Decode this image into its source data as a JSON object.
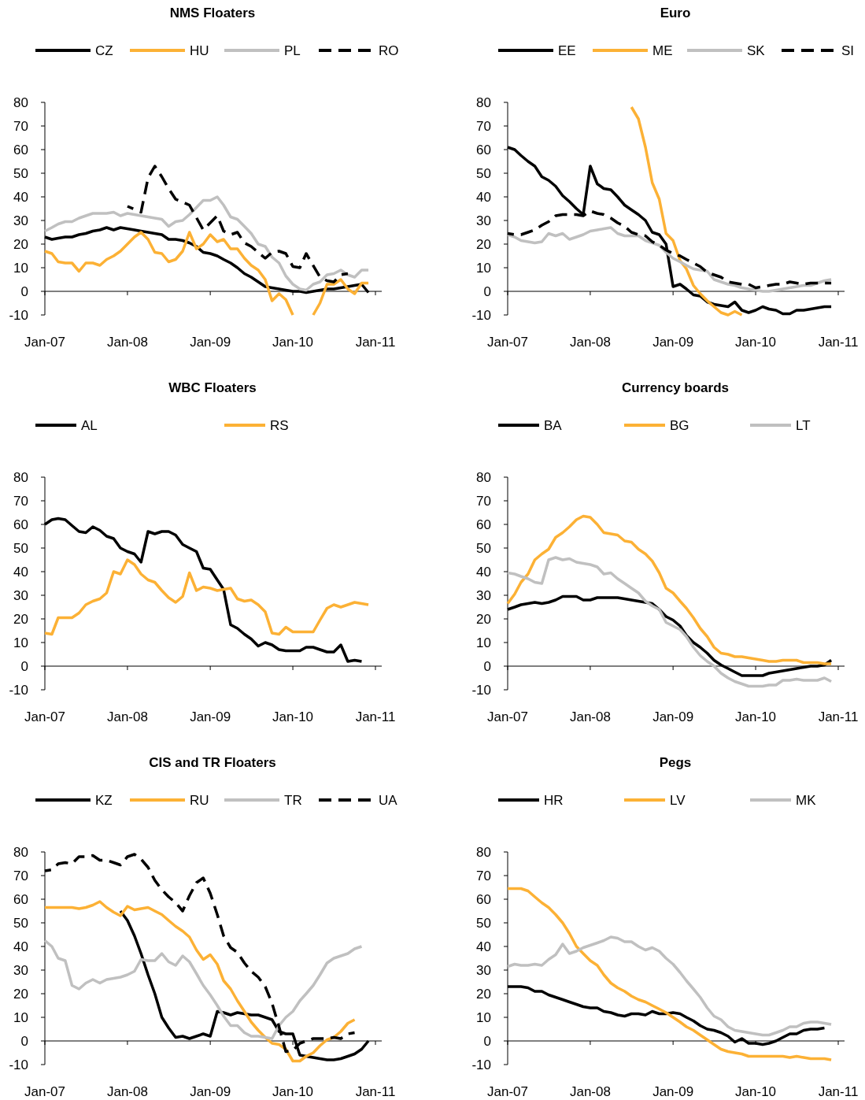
{
  "chart_data": [
    {
      "type": "line",
      "title": "NMS Floaters",
      "legend": "top",
      "marker": "none",
      "xlim": [
        "2007-01",
        "2011-01"
      ],
      "ylim": [
        -10,
        80
      ],
      "xticks": [
        {
          "value": "2007-01",
          "label": "Jan-07"
        },
        {
          "value": "2008-01",
          "label": "Jan-08"
        },
        {
          "value": "2009-01",
          "label": "Jan-09"
        },
        {
          "value": "2010-01",
          "label": "Jan-10"
        },
        {
          "value": "2011-01",
          "label": "Jan-11"
        }
      ],
      "yticks": [
        -10,
        0,
        10,
        20,
        30,
        40,
        50,
        60,
        70,
        80
      ],
      "x": [
        "2007-01",
        "2007-02",
        "2007-03",
        "2007-04",
        "2007-05",
        "2007-06",
        "2007-07",
        "2007-08",
        "2007-09",
        "2007-10",
        "2007-11",
        "2007-12",
        "2008-01",
        "2008-02",
        "2008-03",
        "2008-04",
        "2008-05",
        "2008-06",
        "2008-07",
        "2008-08",
        "2008-09",
        "2008-10",
        "2008-11",
        "2008-12",
        "2009-01",
        "2009-02",
        "2009-03",
        "2009-04",
        "2009-05",
        "2009-06",
        "2009-07",
        "2009-08",
        "2009-09",
        "2009-10",
        "2009-11",
        "2009-12",
        "2010-01",
        "2010-02",
        "2010-03",
        "2010-04",
        "2010-05",
        "2010-06",
        "2010-07",
        "2010-08",
        "2010-09",
        "2010-10",
        "2010-11",
        "2010-12"
      ],
      "series": [
        {
          "name": "CZ",
          "color": "#000000",
          "values": [
            23,
            22,
            22.5,
            23,
            23,
            24,
            24.5,
            25.5,
            26,
            27,
            26,
            27,
            26.5,
            26,
            25.5,
            25,
            24.5,
            24,
            22,
            22,
            21.5,
            20.5,
            19,
            16.5,
            16,
            15,
            13.5,
            12,
            10,
            7.5,
            6,
            4,
            2,
            1.5,
            1,
            0.5,
            0,
            0,
            -0.5,
            0,
            0.5,
            1,
            1,
            1.5,
            2,
            2.5,
            3,
            -0.5
          ]
        },
        {
          "name": "HU",
          "color": "#fcb135",
          "values": [
            17,
            16,
            12.5,
            12,
            12,
            8.5,
            12,
            12,
            11,
            13.5,
            15,
            17,
            20,
            23,
            25,
            22,
            16.5,
            16,
            12.5,
            13.5,
            17,
            25,
            18,
            20,
            24,
            21,
            22,
            18,
            18,
            14,
            11,
            9,
            5,
            -4,
            -1,
            -3.5,
            -10,
            null,
            null,
            -10,
            -5,
            3,
            3,
            5,
            1,
            -1,
            3.5,
            3.5
          ]
        },
        {
          "name": "PL",
          "color": "#c0c0c0",
          "values": [
            25.5,
            27,
            28.5,
            29.5,
            29.5,
            31,
            32,
            33,
            33,
            33,
            33.5,
            32,
            33,
            32.5,
            32,
            31.5,
            31,
            30.5,
            27.5,
            29.5,
            30,
            32.5,
            35.5,
            38.5,
            38.5,
            40,
            36.5,
            31.5,
            30.5,
            27.5,
            24.5,
            20,
            19,
            14.5,
            12,
            6.5,
            3,
            1,
            0.5,
            3,
            4,
            7,
            7.5,
            9,
            7,
            6,
            9,
            9
          ]
        },
        {
          "name": "RO",
          "color": "#000000",
          "line_style": "dashed",
          "x": [
            "2008-01",
            "2008-03",
            "2008-04",
            "2008-05",
            "2008-06",
            "2008-07",
            "2008-08",
            "2008-10",
            "2008-12",
            "2009-02",
            "2009-03",
            "2009-04",
            "2009-05",
            "2009-06",
            "2009-07",
            "2009-09",
            "2009-10",
            "2009-11",
            "2009-12",
            "2010-01",
            "2010-02",
            "2010-03",
            "2010-05",
            "2010-06",
            "2010-07",
            "2010-08",
            "2010-09"
          ],
          "values": [
            36,
            33.5,
            48,
            53,
            48.5,
            43.5,
            39,
            36.5,
            26,
            32,
            25.5,
            24,
            25,
            20.5,
            19,
            14,
            16.5,
            17,
            16,
            10.5,
            10,
            16,
            6,
            4.5,
            4,
            7,
            7.5
          ]
        }
      ]
    },
    {
      "type": "line",
      "title": "Euro",
      "legend": "top",
      "marker": "none",
      "xlim": [
        "2007-01",
        "2011-01"
      ],
      "ylim": [
        -10,
        80
      ],
      "xticks": [
        {
          "value": "2007-01",
          "label": "Jan-07"
        },
        {
          "value": "2008-01",
          "label": "Jan-08"
        },
        {
          "value": "2009-01",
          "label": "Jan-09"
        },
        {
          "value": "2010-01",
          "label": "Jan-10"
        },
        {
          "value": "2011-01",
          "label": "Jan-11"
        }
      ],
      "yticks": [
        -10,
        0,
        10,
        20,
        30,
        40,
        50,
        60,
        70,
        80
      ],
      "x": [
        "2007-01",
        "2007-02",
        "2007-03",
        "2007-04",
        "2007-05",
        "2007-06",
        "2007-07",
        "2007-08",
        "2007-09",
        "2007-10",
        "2007-11",
        "2007-12",
        "2008-01",
        "2008-02",
        "2008-03",
        "2008-04",
        "2008-05",
        "2008-06",
        "2008-07",
        "2008-08",
        "2008-09",
        "2008-10",
        "2008-11",
        "2008-12",
        "2009-01",
        "2009-02",
        "2009-03",
        "2009-04",
        "2009-05",
        "2009-06",
        "2009-07",
        "2009-08",
        "2009-09",
        "2009-10",
        "2009-11",
        "2009-12",
        "2010-01",
        "2010-02",
        "2010-03",
        "2010-04",
        "2010-05",
        "2010-06",
        "2010-07",
        "2010-08",
        "2010-09",
        "2010-10",
        "2010-11",
        "2010-12"
      ],
      "series": [
        {
          "name": "EE",
          "color": "#000000",
          "values": [
            61,
            60,
            57.5,
            55,
            53,
            48.5,
            47,
            44.5,
            40.5,
            38,
            35,
            32.5,
            53,
            45.5,
            43.5,
            43,
            40,
            36.5,
            34.5,
            32.5,
            30,
            25,
            24,
            20,
            2,
            3,
            1,
            -1.5,
            -2,
            -4.5,
            -5.5,
            -6,
            -6.5,
            -4.5,
            -8,
            -9,
            -8,
            -6.5,
            -7.5,
            -8,
            -9.5,
            -9.5,
            -8,
            -8,
            -7.5,
            -7,
            -6.5,
            -6.5
          ]
        },
        {
          "name": "ME",
          "color": "#fcb135",
          "values": [
            null,
            null,
            null,
            null,
            null,
            null,
            null,
            null,
            null,
            null,
            null,
            null,
            null,
            null,
            null,
            null,
            null,
            null,
            78,
            73,
            61,
            46,
            39,
            24.5,
            21.5,
            13,
            9.5,
            2.5,
            -1,
            -4,
            -6.5,
            -9,
            -10,
            -8.5,
            -10,
            null,
            null,
            null,
            null,
            null,
            null,
            null,
            null,
            null,
            null,
            null,
            null,
            null
          ]
        },
        {
          "name": "SK",
          "color": "#c0c0c0",
          "values": [
            24,
            23,
            21.5,
            21,
            20.5,
            21,
            24.5,
            23.5,
            24.5,
            22,
            23,
            24,
            25.5,
            26,
            26.5,
            27,
            24.5,
            23.5,
            23.5,
            23.5,
            21.5,
            20.5,
            19.5,
            16.5,
            14,
            12.5,
            11,
            9.5,
            9,
            8.5,
            5,
            4,
            3,
            2.5,
            1.5,
            1,
            0.5,
            0,
            0,
            0.5,
            1,
            1.5,
            2,
            2.5,
            2.5,
            3.5,
            4.5,
            5
          ]
        },
        {
          "name": "SI",
          "color": "#000000",
          "line_style": "dashed",
          "values": [
            24.5,
            24,
            24,
            25,
            26,
            28,
            29.5,
            32,
            32.5,
            32.5,
            32.5,
            32,
            34,
            33,
            32.5,
            31,
            29,
            27.5,
            25,
            24,
            23.5,
            21,
            19.5,
            17.5,
            16,
            15,
            13.5,
            12,
            10.5,
            8,
            7,
            6,
            4,
            3.5,
            3,
            3,
            1.5,
            2,
            2.5,
            3,
            3,
            4,
            3.5,
            3,
            3.5,
            3.5,
            3.5,
            3.5
          ]
        }
      ]
    },
    {
      "type": "line",
      "title": "WBC Floaters",
      "legend": "top",
      "marker": "none",
      "xlim": [
        "2007-01",
        "2011-01"
      ],
      "ylim": [
        -10,
        80
      ],
      "xticks": [
        {
          "value": "2007-01",
          "label": "Jan-07"
        },
        {
          "value": "2008-01",
          "label": "Jan-08"
        },
        {
          "value": "2009-01",
          "label": "Jan-09"
        },
        {
          "value": "2010-01",
          "label": "Jan-10"
        },
        {
          "value": "2011-01",
          "label": "Jan-11"
        }
      ],
      "yticks": [
        -10,
        0,
        10,
        20,
        30,
        40,
        50,
        60,
        70,
        80
      ],
      "x": [
        "2007-01",
        "2007-02",
        "2007-03",
        "2007-04",
        "2007-05",
        "2007-06",
        "2007-07",
        "2007-08",
        "2007-09",
        "2007-10",
        "2007-11",
        "2007-12",
        "2008-01",
        "2008-02",
        "2008-03",
        "2008-04",
        "2008-05",
        "2008-06",
        "2008-07",
        "2008-08",
        "2008-09",
        "2008-10",
        "2008-11",
        "2008-12",
        "2009-01",
        "2009-02",
        "2009-03",
        "2009-04",
        "2009-05",
        "2009-06",
        "2009-07",
        "2009-08",
        "2009-09",
        "2009-10",
        "2009-11",
        "2009-12",
        "2010-01",
        "2010-02",
        "2010-03",
        "2010-04",
        "2010-05",
        "2010-06",
        "2010-07",
        "2010-08",
        "2010-09",
        "2010-10",
        "2010-11",
        "2010-12"
      ],
      "series": [
        {
          "name": "AL",
          "color": "#000000",
          "values": [
            60,
            62,
            62.5,
            62,
            59.5,
            57,
            56.5,
            59,
            57.5,
            55,
            54,
            50,
            48.5,
            47.5,
            44,
            57,
            56,
            57,
            57,
            55.5,
            51.5,
            50,
            48.5,
            41.5,
            41,
            36.5,
            32.5,
            17.5,
            16,
            13.5,
            11.5,
            8.5,
            10,
            9,
            7,
            6.5,
            6.5,
            6.5,
            8,
            8,
            7,
            6,
            6,
            9,
            2,
            2.5,
            2,
            null
          ]
        },
        {
          "name": "RS",
          "color": "#fcb135",
          "values": [
            14,
            13.5,
            20.5,
            20.5,
            20.5,
            22.5,
            26,
            27.5,
            28.5,
            31,
            40,
            39,
            45,
            43,
            39,
            36.5,
            35.5,
            32,
            29,
            27,
            29.5,
            39.5,
            32,
            33.5,
            33,
            32,
            32.5,
            33,
            28.5,
            27.5,
            28,
            26,
            23,
            14,
            13.5,
            16.5,
            14.5,
            14.5,
            14.5,
            14.5,
            19.5,
            24.5,
            26,
            25,
            26,
            27,
            26.5,
            26
          ]
        }
      ]
    },
    {
      "type": "line",
      "title": "Currency boards",
      "legend": "top",
      "marker": "none",
      "xlim": [
        "2007-01",
        "2011-01"
      ],
      "ylim": [
        -10,
        80
      ],
      "xticks": [
        {
          "value": "2007-01",
          "label": "Jan-07"
        },
        {
          "value": "2008-01",
          "label": "Jan-08"
        },
        {
          "value": "2009-01",
          "label": "Jan-09"
        },
        {
          "value": "2010-01",
          "label": "Jan-10"
        },
        {
          "value": "2011-01",
          "label": "Jan-11"
        }
      ],
      "yticks": [
        -10,
        0,
        10,
        20,
        30,
        40,
        50,
        60,
        70,
        80
      ],
      "x": [
        "2007-01",
        "2007-02",
        "2007-03",
        "2007-04",
        "2007-05",
        "2007-06",
        "2007-07",
        "2007-08",
        "2007-09",
        "2007-10",
        "2007-11",
        "2007-12",
        "2008-01",
        "2008-02",
        "2008-03",
        "2008-04",
        "2008-05",
        "2008-06",
        "2008-07",
        "2008-08",
        "2008-09",
        "2008-10",
        "2008-11",
        "2008-12",
        "2009-01",
        "2009-02",
        "2009-03",
        "2009-04",
        "2009-05",
        "2009-06",
        "2009-07",
        "2009-08",
        "2009-09",
        "2009-10",
        "2009-11",
        "2009-12",
        "2010-01",
        "2010-02",
        "2010-03",
        "2010-04",
        "2010-05",
        "2010-06",
        "2010-07",
        "2010-08",
        "2010-09",
        "2010-10",
        "2010-11",
        "2010-12"
      ],
      "series": [
        {
          "name": "BA",
          "color": "#000000",
          "values": [
            24,
            25,
            26,
            26.5,
            27,
            26.5,
            27,
            28,
            29.5,
            29.5,
            29.5,
            28,
            28,
            29,
            29,
            29,
            29,
            28.5,
            28,
            27.5,
            27,
            26.5,
            24,
            21,
            19.5,
            17,
            13,
            10,
            8,
            5.5,
            2.5,
            0.5,
            -1,
            -2.5,
            -4,
            -4,
            -4,
            -4,
            -3,
            -2.5,
            -2,
            -1.5,
            -1,
            -0.5,
            0,
            0,
            0.5,
            2.5
          ]
        },
        {
          "name": "BG",
          "color": "#fcb135",
          "values": [
            26.5,
            30.5,
            35.5,
            39,
            45,
            47.5,
            49.5,
            54.5,
            56.5,
            59,
            62,
            63.5,
            63,
            60,
            56.5,
            56,
            55.5,
            53,
            52.5,
            49.5,
            47.5,
            44.5,
            39.5,
            33,
            31,
            27.5,
            24.5,
            20.5,
            16,
            12.5,
            8,
            5.5,
            5,
            4,
            4,
            3.5,
            3,
            2.5,
            2,
            2,
            2.5,
            2.5,
            2.5,
            1.5,
            1.5,
            1.5,
            1,
            1
          ]
        },
        {
          "name": "LT",
          "color": "#c0c0c0",
          "values": [
            39.5,
            39,
            38,
            37,
            35.5,
            35,
            45,
            46,
            45,
            45.5,
            44,
            43.5,
            43,
            42,
            39,
            39.5,
            37,
            35,
            33,
            31,
            27.5,
            25.5,
            24,
            18.5,
            17,
            15.5,
            12.5,
            8,
            4.5,
            2,
            0,
            -3,
            -5,
            -6.5,
            -7.5,
            -8.5,
            -8.5,
            -8.5,
            -8,
            -8,
            -6,
            -6,
            -5.5,
            -6,
            -6,
            -6,
            -5,
            -6.5
          ]
        }
      ]
    },
    {
      "type": "line",
      "title": "CIS and TR Floaters",
      "legend": "top",
      "marker": "none",
      "xlim": [
        "2007-01",
        "2011-01"
      ],
      "ylim": [
        -10,
        80
      ],
      "xticks": [
        {
          "value": "2007-01",
          "label": "Jan-07"
        },
        {
          "value": "2008-01",
          "label": "Jan-08"
        },
        {
          "value": "2009-01",
          "label": "Jan-09"
        },
        {
          "value": "2010-01",
          "label": "Jan-10"
        },
        {
          "value": "2011-01",
          "label": "Jan-11"
        }
      ],
      "yticks": [
        -10,
        0,
        10,
        20,
        30,
        40,
        50,
        60,
        70,
        80
      ],
      "x": [
        "2007-01",
        "2007-02",
        "2007-03",
        "2007-04",
        "2007-05",
        "2007-06",
        "2007-07",
        "2007-08",
        "2007-09",
        "2007-10",
        "2007-11",
        "2007-12",
        "2008-01",
        "2008-02",
        "2008-03",
        "2008-04",
        "2008-05",
        "2008-06",
        "2008-07",
        "2008-08",
        "2008-09",
        "2008-10",
        "2008-11",
        "2008-12",
        "2009-01",
        "2009-02",
        "2009-03",
        "2009-04",
        "2009-05",
        "2009-06",
        "2009-07",
        "2009-08",
        "2009-09",
        "2009-10",
        "2009-11",
        "2009-12",
        "2010-01",
        "2010-02",
        "2010-03",
        "2010-04",
        "2010-05",
        "2010-06",
        "2010-07",
        "2010-08",
        "2010-09",
        "2010-10",
        "2010-11",
        "2010-12"
      ],
      "series": [
        {
          "name": "KZ",
          "color": "#000000",
          "values": [
            null,
            null,
            null,
            null,
            null,
            null,
            null,
            null,
            null,
            null,
            null,
            55,
            51,
            44.5,
            37,
            28,
            20,
            10,
            5.5,
            1.5,
            2,
            1,
            2,
            3,
            2,
            12.5,
            12,
            11,
            12,
            11.5,
            11,
            11,
            10,
            9,
            4,
            3,
            3,
            -6,
            -6.5,
            -7,
            -7.5,
            -8,
            -8,
            -7.5,
            -6.5,
            -5.5,
            -3.5,
            0
          ]
        },
        {
          "name": "RU",
          "color": "#fcb135",
          "values": [
            56.5,
            56.5,
            56.5,
            56.5,
            56.5,
            56,
            56.5,
            57.5,
            59,
            56.5,
            54.5,
            53,
            57,
            55.5,
            56,
            56.5,
            55,
            53.5,
            51,
            48.5,
            46.5,
            44,
            38.5,
            34.5,
            36.5,
            32.5,
            25.5,
            22,
            17,
            12.5,
            8,
            4.5,
            1.5,
            -1,
            -1.5,
            -3.5,
            -8.5,
            -8.5,
            -6.5,
            -5,
            -2,
            0.5,
            1.5,
            4,
            7.5,
            9,
            null,
            null
          ]
        },
        {
          "name": "TR",
          "color": "#c0c0c0",
          "values": [
            42.5,
            40,
            35,
            34,
            23.5,
            22,
            24.5,
            26,
            24.5,
            26,
            26.5,
            27,
            28,
            29.5,
            34.5,
            34,
            34,
            37,
            33.5,
            32,
            36,
            33.5,
            28.5,
            23.5,
            19.5,
            15,
            10.5,
            6.5,
            6.5,
            3.5,
            2,
            2,
            1.5,
            1,
            6.5,
            10,
            12.5,
            17,
            20,
            23.5,
            28,
            33,
            35,
            36,
            37,
            39,
            40,
            null
          ]
        },
        {
          "name": "UA",
          "color": "#000000",
          "line_style": "dashed",
          "values": [
            72,
            72.5,
            75,
            75.5,
            75,
            78,
            78,
            78.5,
            76.5,
            76.5,
            75.5,
            74.5,
            78,
            79,
            77,
            73.5,
            68,
            64,
            61,
            58.5,
            55,
            61.5,
            67,
            69,
            62.5,
            53.5,
            44.5,
            39.5,
            37.5,
            33,
            29.5,
            27,
            23,
            16,
            6,
            -4.5,
            -4,
            -1,
            0,
            1,
            1,
            1,
            1.5,
            1,
            3,
            3.5,
            null,
            null
          ]
        }
      ]
    },
    {
      "type": "line",
      "title": "Pegs",
      "legend": "top",
      "marker": "none",
      "xlim": [
        "2007-01",
        "2011-01"
      ],
      "ylim": [
        -10,
        80
      ],
      "xticks": [
        {
          "value": "2007-01",
          "label": "Jan-07"
        },
        {
          "value": "2008-01",
          "label": "Jan-08"
        },
        {
          "value": "2009-01",
          "label": "Jan-09"
        },
        {
          "value": "2010-01",
          "label": "Jan-10"
        },
        {
          "value": "2011-01",
          "label": "Jan-11"
        }
      ],
      "yticks": [
        -10,
        0,
        10,
        20,
        30,
        40,
        50,
        60,
        70,
        80
      ],
      "x": [
        "2007-01",
        "2007-02",
        "2007-03",
        "2007-04",
        "2007-05",
        "2007-06",
        "2007-07",
        "2007-08",
        "2007-09",
        "2007-10",
        "2007-11",
        "2007-12",
        "2008-01",
        "2008-02",
        "2008-03",
        "2008-04",
        "2008-05",
        "2008-06",
        "2008-07",
        "2008-08",
        "2008-09",
        "2008-10",
        "2008-11",
        "2008-12",
        "2009-01",
        "2009-02",
        "2009-03",
        "2009-04",
        "2009-05",
        "2009-06",
        "2009-07",
        "2009-08",
        "2009-09",
        "2009-10",
        "2009-11",
        "2009-12",
        "2010-01",
        "2010-02",
        "2010-03",
        "2010-04",
        "2010-05",
        "2010-06",
        "2010-07",
        "2010-08",
        "2010-09",
        "2010-10",
        "2010-11",
        "2010-12"
      ],
      "series": [
        {
          "name": "HR",
          "color": "#000000",
          "values": [
            23,
            23,
            23,
            22.5,
            21,
            21,
            19.5,
            18.5,
            17.5,
            16.5,
            15.5,
            14.5,
            14,
            14,
            12.5,
            12,
            11,
            10.5,
            11.5,
            11.5,
            11,
            12.5,
            11.5,
            11.5,
            12,
            11.5,
            10,
            8.5,
            6.5,
            5,
            4.5,
            3.5,
            2,
            -0.5,
            1,
            -1,
            -1,
            -1.5,
            -1,
            0,
            1.5,
            3,
            3,
            4.5,
            5,
            5,
            5.5,
            null
          ]
        },
        {
          "name": "LV",
          "color": "#fcb135",
          "values": [
            64.5,
            64.5,
            64.5,
            63.5,
            61,
            58.5,
            56.5,
            53.5,
            50,
            45.5,
            40,
            37,
            34,
            32,
            28,
            24.5,
            22.5,
            21,
            19,
            17.5,
            16.5,
            15,
            13.5,
            12,
            10,
            8,
            6,
            4.5,
            2.5,
            0.5,
            -1.5,
            -3.5,
            -4.5,
            -5,
            -5.5,
            -6.5,
            -6.5,
            -6.5,
            -6.5,
            -6.5,
            -6.5,
            -7,
            -6.5,
            -7,
            -7.5,
            -7.5,
            -7.5,
            -8
          ]
        },
        {
          "name": "MK",
          "color": "#c0c0c0",
          "values": [
            31.5,
            32.5,
            32,
            32,
            32.5,
            32,
            34.5,
            36.5,
            41,
            37,
            38,
            39.5,
            40.5,
            41.5,
            42.5,
            44,
            43.5,
            42,
            42,
            40,
            38.5,
            39.5,
            38,
            35,
            32.5,
            29,
            25.5,
            22,
            18.5,
            14,
            10.5,
            9,
            6,
            4.5,
            4,
            3.5,
            3,
            2.5,
            2.5,
            3.5,
            4.5,
            6,
            6,
            7.5,
            8,
            8,
            7.5,
            7
          ]
        }
      ]
    }
  ]
}
